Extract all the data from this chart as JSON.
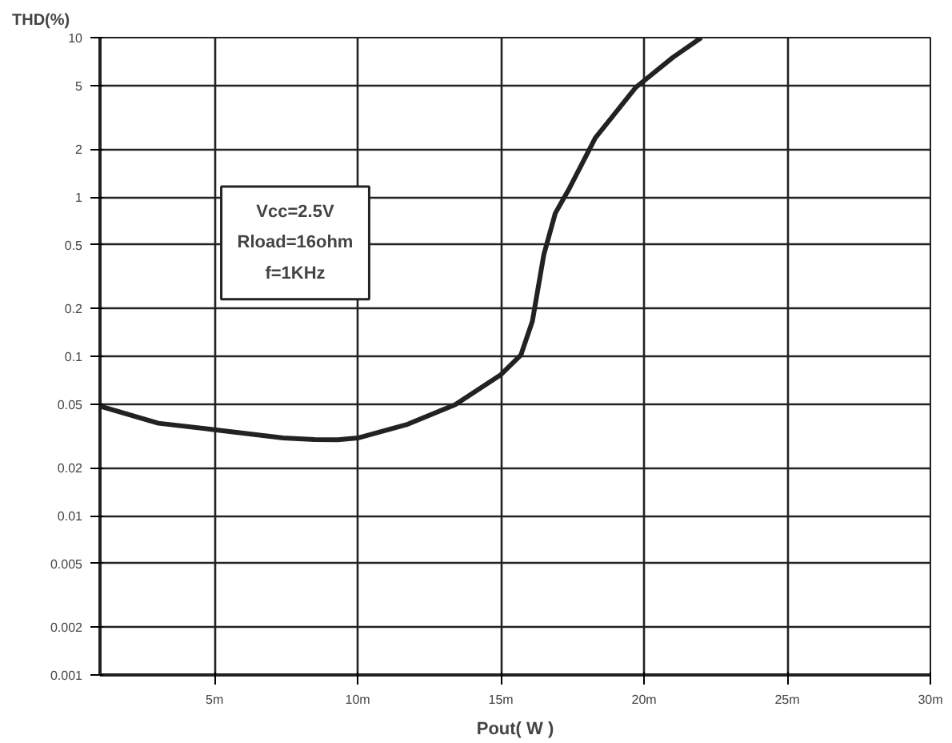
{
  "chart_data": {
    "type": "line",
    "ylabel": "THD(%)",
    "xlabel": "Pout( W )",
    "annotations": [
      "Vcc=2.5V",
      "Rload=16ohm",
      "f=1KHz"
    ],
    "log": "y",
    "grid": true,
    "marker": "none",
    "line_style": "solid",
    "xlim": [
      1,
      30
    ],
    "xticks": [
      {
        "value": 5,
        "label": "5m"
      },
      {
        "value": 10,
        "label": "10m"
      },
      {
        "value": 15,
        "label": "15m"
      },
      {
        "value": 20,
        "label": "20m"
      },
      {
        "value": 25,
        "label": "25m"
      },
      {
        "value": 30,
        "label": "30m"
      }
    ],
    "ylim": [
      0.001,
      10
    ],
    "yticks": [
      0.001,
      0.002,
      0.005,
      0.01,
      0.02,
      0.05,
      0.1,
      0.2,
      0.5,
      1,
      2,
      5,
      10
    ],
    "series": [
      {
        "color": "#222222",
        "x": [
          1.03,
          3.04,
          5,
          7.4,
          8.5,
          9.3,
          10,
          11.7,
          13.4,
          15,
          15.7,
          16.1,
          16.5,
          16.9,
          17.4,
          18.3,
          19.7,
          21,
          22
        ],
        "values": [
          0.0485,
          0.038,
          0.0346,
          0.0307,
          0.03,
          0.0299,
          0.0307,
          0.0372,
          0.0497,
          0.0767,
          0.102,
          0.166,
          0.435,
          0.79,
          1.14,
          2.35,
          4.85,
          7.5,
          10
        ]
      }
    ]
  }
}
